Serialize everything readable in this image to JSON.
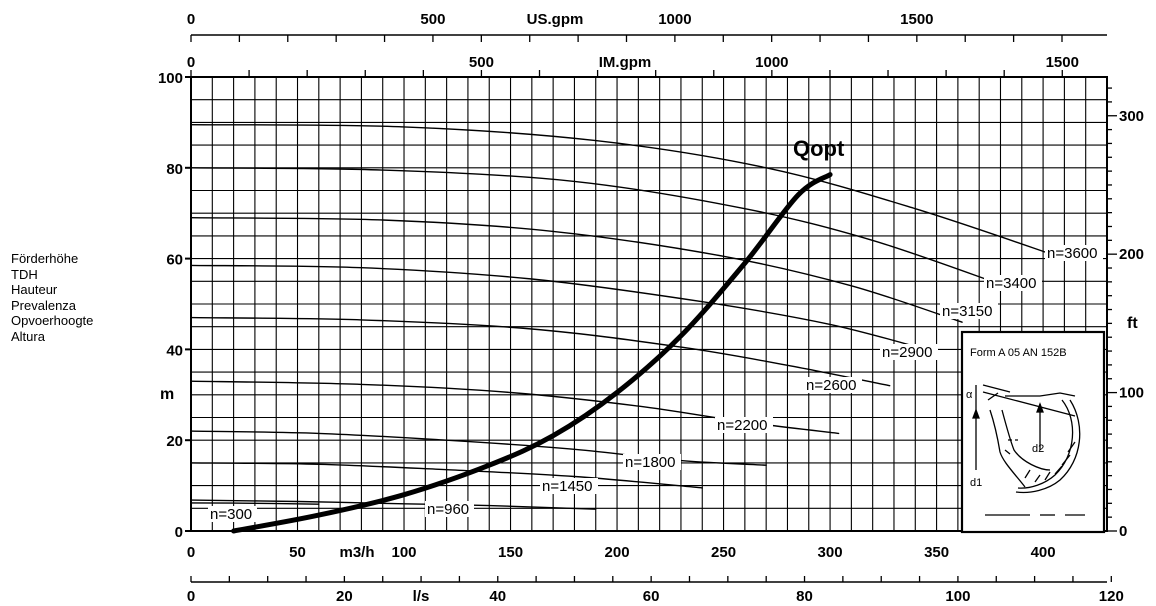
{
  "y_axis_label_lines": [
    "Förderhöhe",
    "TDH",
    "Hauteur",
    "Prevalenza",
    "Opvoerhoogte",
    "Altura"
  ],
  "chart_data": {
    "type": "line",
    "title": "",
    "axes": {
      "x_primary": {
        "label": "m3/h",
        "range": [
          0,
          430
        ],
        "ticks": [
          0,
          50,
          100,
          150,
          200,
          250,
          300,
          350,
          400
        ]
      },
      "x_ls": {
        "label": "l/s",
        "range": [
          0,
          119.44
        ],
        "ticks": [
          0,
          20,
          40,
          60,
          80,
          100,
          120
        ]
      },
      "x_usgpm": {
        "label": "US.gpm",
        "range": [
          0,
          1893
        ],
        "ticks": [
          0,
          500,
          1000,
          1500
        ]
      },
      "x_imgpm": {
        "label": "IM.gpm",
        "range": [
          0,
          1577
        ],
        "ticks": [
          0,
          500,
          1000,
          1500
        ]
      },
      "y_primary": {
        "label": "m",
        "range": [
          0,
          100
        ],
        "ticks": [
          0,
          20,
          40,
          60,
          80,
          100
        ]
      },
      "y_ft": {
        "label": "ft",
        "range": [
          0,
          328
        ],
        "ticks": [
          0,
          100,
          200,
          300
        ]
      }
    },
    "grid": true,
    "series": [
      {
        "name": "n=300",
        "points": [
          [
            0,
            6.2
          ],
          [
            30,
            6.1
          ],
          [
            60,
            5.9
          ]
        ]
      },
      {
        "name": "n=960",
        "points": [
          [
            0,
            6.8
          ],
          [
            50,
            6.5
          ],
          [
            100,
            6
          ],
          [
            140,
            5.6
          ],
          [
            190,
            4.8
          ]
        ]
      },
      {
        "name": "n=1450",
        "points": [
          [
            0,
            15
          ],
          [
            60,
            14.7
          ],
          [
            120,
            13.5
          ],
          [
            180,
            12
          ],
          [
            240,
            9.5
          ]
        ]
      },
      {
        "name": "n=1800",
        "points": [
          [
            0,
            22
          ],
          [
            60,
            21.5
          ],
          [
            120,
            20
          ],
          [
            180,
            18
          ],
          [
            230,
            15.5
          ],
          [
            270,
            14.5
          ]
        ]
      },
      {
        "name": "n=2200",
        "points": [
          [
            0,
            33
          ],
          [
            80,
            32.3
          ],
          [
            150,
            30.5
          ],
          [
            210,
            27.5
          ],
          [
            260,
            24
          ],
          [
            304,
            21.5
          ]
        ]
      },
      {
        "name": "n=2600",
        "points": [
          [
            0,
            47
          ],
          [
            80,
            46.5
          ],
          [
            160,
            44.5
          ],
          [
            230,
            40.5
          ],
          [
            280,
            36.5
          ],
          [
            328,
            32
          ]
        ]
      },
      {
        "name": "n=2900",
        "points": [
          [
            0,
            58.5
          ],
          [
            80,
            58
          ],
          [
            160,
            55.5
          ],
          [
            240,
            50.5
          ],
          [
            300,
            45.5
          ],
          [
            345,
            40
          ]
        ]
      },
      {
        "name": "n=3150",
        "points": [
          [
            0,
            69
          ],
          [
            90,
            68.5
          ],
          [
            170,
            66
          ],
          [
            250,
            60.5
          ],
          [
            310,
            54
          ],
          [
            362,
            46
          ]
        ]
      },
      {
        "name": "n=3400",
        "points": [
          [
            0,
            80
          ],
          [
            90,
            79.5
          ],
          [
            180,
            77
          ],
          [
            260,
            71
          ],
          [
            320,
            64
          ],
          [
            382,
            54
          ]
        ]
      },
      {
        "name": "n=3600",
        "points": [
          [
            0,
            89.5
          ],
          [
            100,
            89
          ],
          [
            190,
            86
          ],
          [
            270,
            80
          ],
          [
            340,
            71
          ],
          [
            410,
            60
          ]
        ]
      },
      {
        "name": "Qopt",
        "points": [
          [
            20,
            0
          ],
          [
            60,
            3.5
          ],
          [
            100,
            8
          ],
          [
            140,
            14.5
          ],
          [
            170,
            21
          ],
          [
            200,
            30.5
          ],
          [
            230,
            43
          ],
          [
            260,
            59
          ],
          [
            285,
            74
          ],
          [
            300,
            78.5
          ]
        ]
      }
    ],
    "series_labels": [
      "n=300",
      "n=960",
      "n=1450",
      "n=1800",
      "n=2200",
      "n=2600",
      "n=2900",
      "n=3150",
      "n=3400",
      "n=3600"
    ],
    "annotations": [
      "Qopt"
    ],
    "inset": {
      "title": "Form A 05 AN 152B",
      "labels": [
        "α",
        "d1",
        "d2"
      ]
    }
  }
}
